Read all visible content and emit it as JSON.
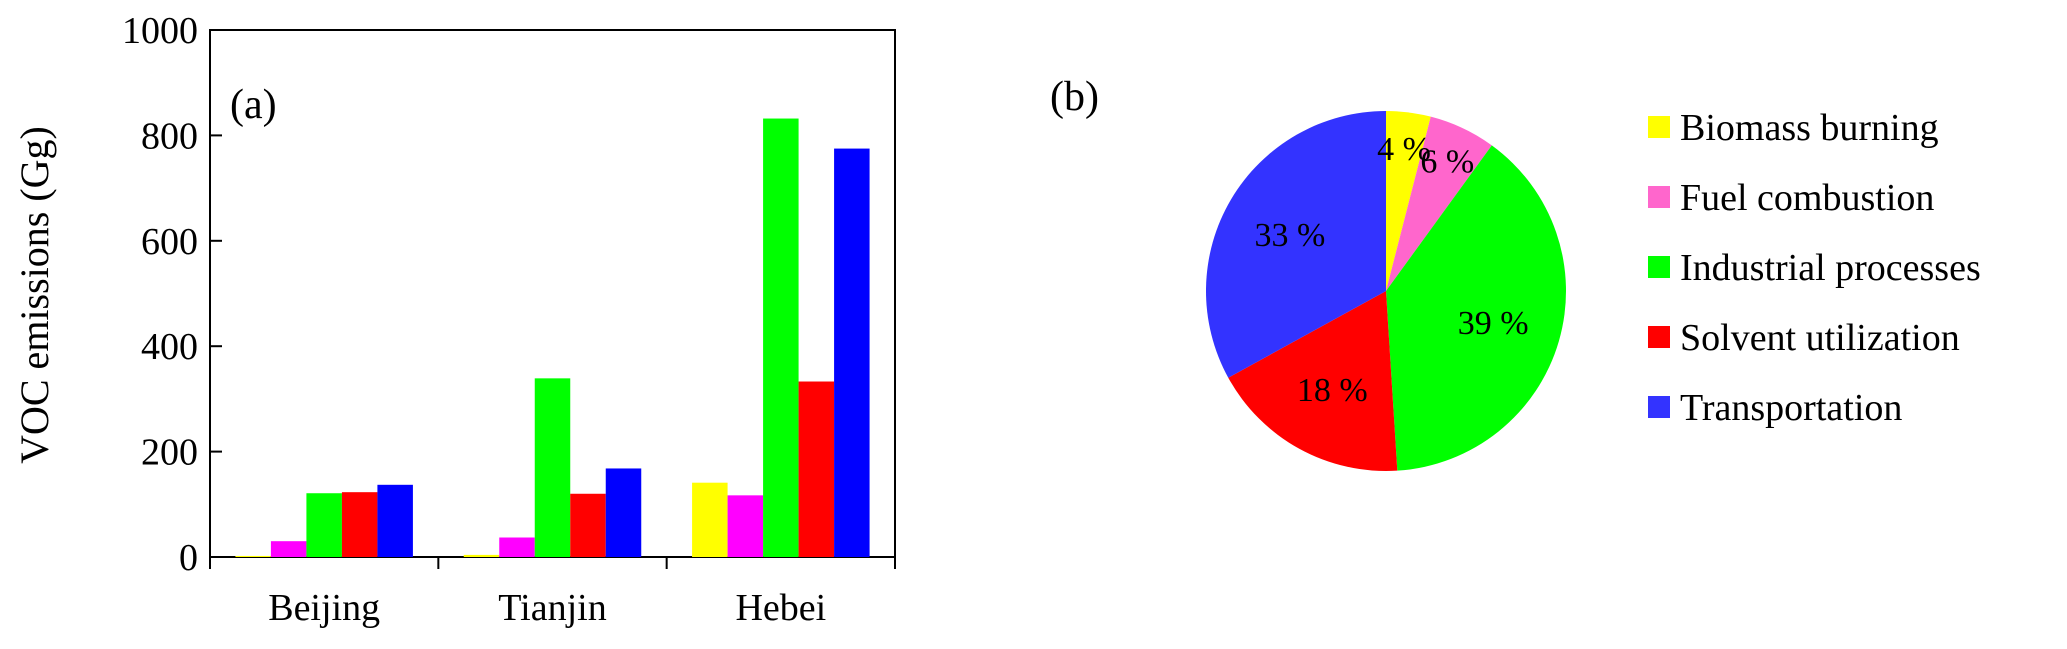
{
  "chart_data": [
    {
      "type": "bar",
      "panel_label": "(a)",
      "ylabel": "VOC emissions (Gg)",
      "xlabel": "",
      "ylim": [
        0,
        1000
      ],
      "yticks": [
        0,
        200,
        400,
        600,
        800,
        1000
      ],
      "categories": [
        "Beijing",
        "Tianjin",
        "Hebei"
      ],
      "grid": false,
      "series": [
        {
          "name": "Biomass burning",
          "color": "#ffff00",
          "values": [
            2,
            4,
            141
          ]
        },
        {
          "name": "Fuel combustion",
          "color": "#ff00ff",
          "values": [
            30,
            37,
            117
          ]
        },
        {
          "name": "Industrial processes",
          "color": "#00ff00",
          "values": [
            121,
            339,
            832
          ]
        },
        {
          "name": "Solvent utilization",
          "color": "#ff0000",
          "values": [
            123,
            120,
            333
          ]
        },
        {
          "name": "Transportation",
          "color": "#0000ff",
          "values": [
            137,
            168,
            775
          ]
        }
      ]
    },
    {
      "type": "pie",
      "panel_label": "(b)",
      "legend_position": "right",
      "slices": [
        {
          "name": "Biomass burning",
          "color": "#ffff00",
          "value": 4,
          "label": "4 %"
        },
        {
          "name": "Fuel combustion",
          "color": "#ff66cc",
          "value": 6,
          "label": "6 %"
        },
        {
          "name": "Industrial processes",
          "color": "#00ff00",
          "value": 39,
          "label": "39 %"
        },
        {
          "name": "Solvent utilization",
          "color": "#ff0000",
          "value": 18,
          "label": "18 %"
        },
        {
          "name": "Transportation",
          "color": "#3333ff",
          "value": 33,
          "label": "33 %"
        }
      ]
    }
  ]
}
